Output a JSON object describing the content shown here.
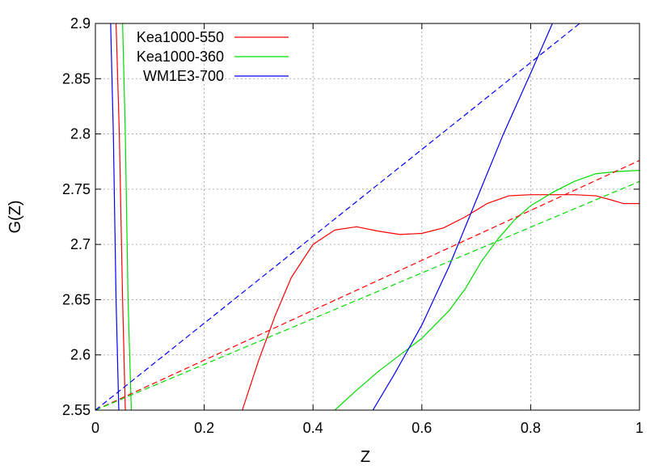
{
  "chart_data": {
    "type": "line",
    "title": "",
    "xlabel": "Z",
    "ylabel": "G(Z)",
    "xlim": [
      0,
      1
    ],
    "ylim": [
      2.55,
      2.9
    ],
    "grid": true,
    "legend_position": "top-left",
    "x_ticks": [
      0,
      0.2,
      0.4,
      0.6,
      0.8,
      1
    ],
    "x_tick_labels": [
      "0",
      "0.2",
      "0.4",
      "0.6",
      "0.8",
      "1"
    ],
    "y_ticks": [
      2.55,
      2.6,
      2.65,
      2.7,
      2.75,
      2.8,
      2.85,
      2.9
    ],
    "y_tick_labels": [
      "2.55",
      "2.6",
      "2.65",
      "2.7",
      "2.75",
      "2.8",
      "2.85",
      "2.9"
    ],
    "series": [
      {
        "name": "Kea1000-550",
        "color": "#ff0000",
        "style": "solid",
        "segments": [
          {
            "x": [
              0.038,
              0.044,
              0.05,
              0.055
            ],
            "y": [
              2.9,
              2.8,
              2.65,
              2.55
            ]
          },
          {
            "x": [
              0.27,
              0.3,
              0.33,
              0.36,
              0.4,
              0.44,
              0.48,
              0.52,
              0.56,
              0.6,
              0.64,
              0.68,
              0.72,
              0.76,
              0.8,
              0.84,
              0.88,
              0.92,
              0.95,
              0.97,
              1.0
            ],
            "y": [
              2.55,
              2.595,
              2.635,
              2.67,
              2.7,
              2.713,
              2.716,
              2.712,
              2.709,
              2.71,
              2.715,
              2.725,
              2.737,
              2.744,
              2.745,
              2.745,
              2.745,
              2.744,
              2.74,
              2.737,
              2.737
            ]
          }
        ]
      },
      {
        "name": "Kea1000-360",
        "color": "#00dd00",
        "style": "solid",
        "segments": [
          {
            "x": [
              0.05,
              0.055,
              0.06,
              0.066
            ],
            "y": [
              2.9,
              2.8,
              2.65,
              2.55
            ]
          },
          {
            "x": [
              0.44,
              0.48,
              0.52,
              0.56,
              0.6,
              0.65,
              0.68,
              0.71,
              0.74,
              0.77,
              0.8,
              0.84,
              0.88,
              0.92,
              0.96,
              1.0
            ],
            "y": [
              2.55,
              2.568,
              2.585,
              2.6,
              2.615,
              2.64,
              2.66,
              2.685,
              2.705,
              2.722,
              2.735,
              2.747,
              2.757,
              2.764,
              2.766,
              2.767
            ]
          }
        ]
      },
      {
        "name": "WM1E3-700",
        "color": "#0000ff",
        "style": "solid",
        "segments": [
          {
            "x": [
              0.028,
              0.033,
              0.038,
              0.043
            ],
            "y": [
              2.9,
              2.8,
              2.65,
              2.55
            ]
          },
          {
            "x": [
              0.51,
              0.55,
              0.6,
              0.65,
              0.7,
              0.75,
              0.8,
              0.84
            ],
            "y": [
              2.55,
              2.583,
              2.627,
              2.68,
              2.74,
              2.8,
              2.855,
              2.9
            ]
          }
        ]
      },
      {
        "color": "#ff0000",
        "style": "dashed",
        "segments": [
          {
            "x": [
              0,
              1
            ],
            "y": [
              2.55,
              2.776
            ]
          }
        ]
      },
      {
        "color": "#00dd00",
        "style": "dashed",
        "segments": [
          {
            "x": [
              0,
              1
            ],
            "y": [
              2.55,
              2.757
            ]
          }
        ]
      },
      {
        "color": "#0000ff",
        "style": "dashed",
        "segments": [
          {
            "x": [
              0,
              0.89
            ],
            "y": [
              2.55,
              2.9
            ]
          }
        ]
      }
    ]
  }
}
